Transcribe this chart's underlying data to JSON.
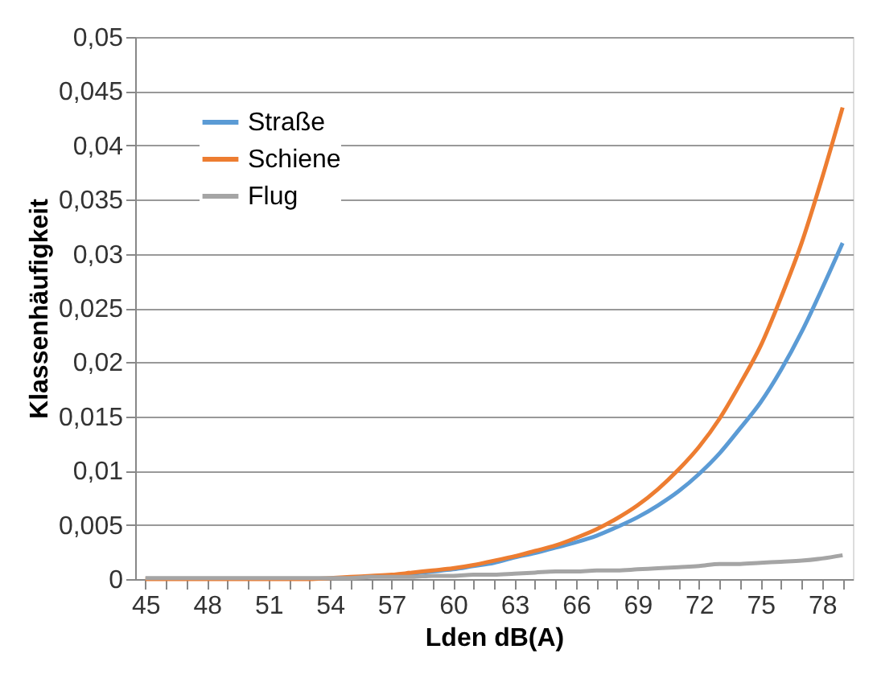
{
  "chart_data": {
    "type": "line",
    "xlabel": "Lden dB(A)",
    "ylabel": "Klassenhäufigkeit",
    "categories": [
      "45",
      null,
      null,
      "48",
      null,
      null,
      "51",
      null,
      null,
      "54",
      null,
      null,
      "57",
      null,
      null,
      "60",
      null,
      null,
      "63",
      null,
      null,
      "66",
      null,
      null,
      "69",
      null,
      null,
      "72",
      null,
      null,
      "75",
      null,
      null,
      "78",
      null
    ],
    "series": [
      {
        "name": "Straße",
        "color": "#5b9bd5",
        "values": [
          null,
          null,
          null,
          null,
          null,
          null,
          null,
          null,
          null,
          null,
          null,
          null,
          0.0004,
          0.0005,
          0.0007,
          0.0009,
          0.0012,
          0.0015,
          0.002,
          0.0024,
          0.0029,
          0.0034,
          0.004,
          0.0048,
          0.0057,
          0.0068,
          0.0081,
          0.0097,
          0.0116,
          0.0139,
          0.0163,
          0.0193,
          0.0228,
          0.0268,
          0.031
        ]
      },
      {
        "name": "Schiene",
        "color": "#ed7d31",
        "values": [
          0,
          0,
          0,
          0,
          0,
          0,
          0,
          0,
          0,
          0.0001,
          0.0002,
          0.0003,
          0.0004,
          0.0006,
          0.0008,
          0.001,
          0.0013,
          0.0017,
          0.0021,
          0.0026,
          0.0031,
          0.0038,
          0.0046,
          0.0056,
          0.0068,
          0.0083,
          0.0101,
          0.0122,
          0.0148,
          0.018,
          0.0215,
          0.026,
          0.031,
          0.037,
          0.0435
        ]
      },
      {
        "name": "Flug",
        "color": "#a5a5a5",
        "values": [
          0.0001,
          0.0001,
          0.0001,
          0.0001,
          0.0001,
          0.0001,
          0.0001,
          0.0001,
          0.0001,
          0.0001,
          0.0001,
          0.0002,
          0.0002,
          0.0002,
          0.0003,
          0.0003,
          0.0004,
          0.0004,
          0.0005,
          0.0006,
          0.0007,
          0.0007,
          0.0008,
          0.0008,
          0.0009,
          0.001,
          0.0011,
          0.0012,
          0.0014,
          0.0014,
          0.0015,
          0.0016,
          0.0017,
          0.0019,
          0.0022
        ]
      }
    ],
    "ylim": [
      0,
      0.05
    ],
    "yticks": [
      0,
      {
        "value": 0.005,
        "label": "0,005"
      },
      {
        "value": 0.01,
        "label": "0,01"
      },
      {
        "value": 0.015,
        "label": "0,015"
      },
      {
        "value": 0.02,
        "label": "0,02"
      },
      {
        "value": 0.025,
        "label": "0,025"
      },
      {
        "value": 0.03,
        "label": "0,03"
      },
      {
        "value": 0.035,
        "label": "0,035"
      },
      {
        "value": 0.04,
        "label": "0,04"
      },
      {
        "value": 0.045,
        "label": "0,045"
      },
      {
        "value": 0.05,
        "label": "0,05"
      }
    ],
    "grid": "y",
    "legend": "top left",
    "marker": "none",
    "line_style": "solid"
  }
}
